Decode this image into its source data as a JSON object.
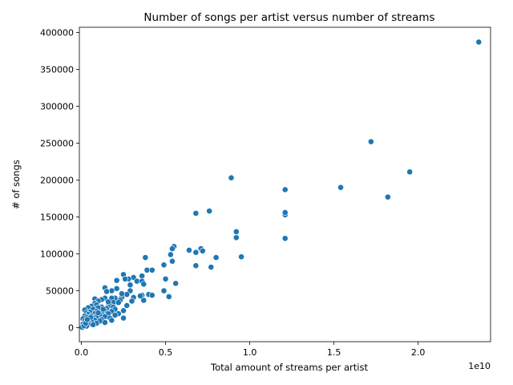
{
  "chart_data": {
    "type": "scatter",
    "title": "Number of songs per artist versus number of streams",
    "xlabel": "Total amount of streams per artist",
    "ylabel": "# of songs",
    "x_offset_label": "1e10",
    "xlim": [
      -0.12,
      24.3
    ],
    "ylim": [
      -19000,
      407000
    ],
    "xticks": [
      0.0,
      0.5,
      1.0,
      1.5,
      2.0
    ],
    "xtick_labels": [
      "0.0",
      "0.5",
      "1.0",
      "1.5",
      "2.0"
    ],
    "yticks": [
      0,
      50000,
      100000,
      150000,
      200000,
      250000,
      300000,
      350000,
      400000
    ],
    "ytick_labels": [
      "0",
      "50000",
      "100000",
      "150000",
      "200000",
      "250000",
      "300000",
      "350000",
      "400000"
    ],
    "grid": false,
    "legend": "none",
    "x_unit_note": "x values are in units of 1e9 streams (axis shows 1e10 multiplier)",
    "series": [
      {
        "color": "#1f77b4",
        "points": [
          [
            23.6,
            387000
          ],
          [
            17.2,
            252000
          ],
          [
            19.5,
            211000
          ],
          [
            8.9,
            203000
          ],
          [
            15.4,
            190000
          ],
          [
            12.1,
            187000
          ],
          [
            18.2,
            177000
          ],
          [
            6.8,
            155000
          ],
          [
            7.6,
            158000
          ],
          [
            12.1,
            153000
          ],
          [
            12.1,
            156000
          ],
          [
            9.2,
            130000
          ],
          [
            9.2,
            122000
          ],
          [
            12.1,
            121000
          ],
          [
            5.5,
            110000
          ],
          [
            5.4,
            107000
          ],
          [
            7.1,
            107000
          ],
          [
            7.2,
            104000
          ],
          [
            6.4,
            105000
          ],
          [
            6.8,
            102000
          ],
          [
            5.3,
            99000
          ],
          [
            3.8,
            95000
          ],
          [
            8.0,
            95000
          ],
          [
            9.5,
            96000
          ],
          [
            5.4,
            90000
          ],
          [
            4.9,
            85000
          ],
          [
            6.8,
            84000
          ],
          [
            7.7,
            82000
          ],
          [
            3.9,
            78000
          ],
          [
            4.2,
            78000
          ],
          [
            2.5,
            72000
          ],
          [
            3.1,
            68000
          ],
          [
            3.6,
            70000
          ],
          [
            5.0,
            66000
          ],
          [
            2.8,
            66000
          ],
          [
            3.3,
            63000
          ],
          [
            3.6,
            63000
          ],
          [
            2.1,
            64000
          ],
          [
            2.6,
            66000
          ],
          [
            5.6,
            60000
          ],
          [
            3.7,
            59000
          ],
          [
            2.9,
            58000
          ],
          [
            1.4,
            54000
          ],
          [
            2.1,
            53000
          ],
          [
            4.9,
            50000
          ],
          [
            1.8,
            50000
          ],
          [
            2.9,
            50000
          ],
          [
            1.5,
            49000
          ],
          [
            4.0,
            45000
          ],
          [
            4.2,
            44000
          ],
          [
            3.6,
            44000
          ],
          [
            5.2,
            42000
          ],
          [
            3.5,
            43000
          ],
          [
            2.4,
            41000
          ],
          [
            3.1,
            41000
          ],
          [
            2.0,
            40000
          ],
          [
            1.8,
            40000
          ],
          [
            1.4,
            40000
          ],
          [
            0.8,
            39000
          ],
          [
            1.2,
            38000
          ],
          [
            3.7,
            37000
          ],
          [
            2.3,
            37000
          ],
          [
            1.0,
            36000
          ],
          [
            3.0,
            36000
          ],
          [
            1.9,
            34000
          ],
          [
            0.8,
            33000
          ],
          [
            2.2,
            34000
          ],
          [
            1.6,
            33000
          ],
          [
            0.9,
            31000
          ],
          [
            1.7,
            30000
          ],
          [
            2.7,
            30000
          ],
          [
            0.6,
            29000
          ],
          [
            1.2,
            28000
          ],
          [
            1.9,
            28000
          ],
          [
            0.4,
            27000
          ],
          [
            1.0,
            27000
          ],
          [
            1.5,
            26000
          ],
          [
            2.0,
            25000
          ],
          [
            0.7,
            25000
          ],
          [
            0.2,
            24000
          ],
          [
            2.5,
            23000
          ],
          [
            1.4,
            23000
          ],
          [
            0.9,
            22000
          ],
          [
            1.8,
            22000
          ],
          [
            0.5,
            21000
          ],
          [
            1.2,
            21000
          ],
          [
            0.3,
            20000
          ],
          [
            2.2,
            19000
          ],
          [
            1.6,
            19000
          ],
          [
            0.8,
            19000
          ],
          [
            0.4,
            18000
          ],
          [
            1.1,
            17000
          ],
          [
            2.0,
            17000
          ],
          [
            0.6,
            16000
          ],
          [
            0.2,
            16000
          ],
          [
            1.4,
            15000
          ],
          [
            0.9,
            15000
          ],
          [
            0.3,
            14000
          ],
          [
            2.5,
            13000
          ],
          [
            1.7,
            13000
          ],
          [
            0.7,
            13000
          ],
          [
            0.5,
            12000
          ],
          [
            1.2,
            11000
          ],
          [
            0.1,
            12000
          ],
          [
            0.4,
            10000
          ],
          [
            1.8,
            10000
          ],
          [
            0.8,
            10000
          ],
          [
            1.1,
            9000
          ],
          [
            0.2,
            9000
          ],
          [
            0.6,
            8000
          ],
          [
            1.4,
            7000
          ],
          [
            0.3,
            7000
          ],
          [
            0.9,
            6000
          ],
          [
            0.5,
            5000
          ],
          [
            0.1,
            5000
          ],
          [
            0.4,
            4000
          ],
          [
            0.7,
            4000
          ],
          [
            0.2,
            3000
          ],
          [
            0.3,
            2000
          ],
          [
            0.1,
            1500
          ],
          [
            0.05,
            500
          ],
          [
            0.15,
            2500
          ],
          [
            0.25,
            6000
          ],
          [
            0.55,
            14000
          ],
          [
            0.35,
            11000
          ],
          [
            1.0,
            20000
          ],
          [
            1.3,
            25000
          ],
          [
            1.6,
            35000
          ],
          [
            2.7,
            45000
          ],
          [
            2.4,
            46000
          ]
        ]
      }
    ]
  }
}
